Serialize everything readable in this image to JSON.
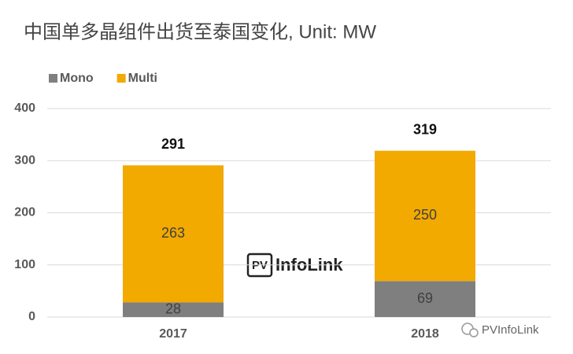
{
  "chart_data": {
    "type": "stacked_bar",
    "title": "中国单多晶组件出货至泰国变化, Unit: MW",
    "categories": [
      "2017",
      "2018"
    ],
    "series": [
      {
        "name": "Mono",
        "color": "#7f7f7f",
        "values": [
          28,
          69
        ]
      },
      {
        "name": "Multi",
        "color": "#f2a900",
        "values": [
          263,
          250
        ]
      }
    ],
    "totals": [
      291,
      319
    ],
    "ylim": [
      0,
      400
    ],
    "yticks": [
      0,
      100,
      200,
      300,
      400
    ],
    "grid": true,
    "legend": "top-left"
  },
  "logo": {
    "badge": "PV",
    "text": "InfoLink"
  },
  "source": "PVInfoLink"
}
